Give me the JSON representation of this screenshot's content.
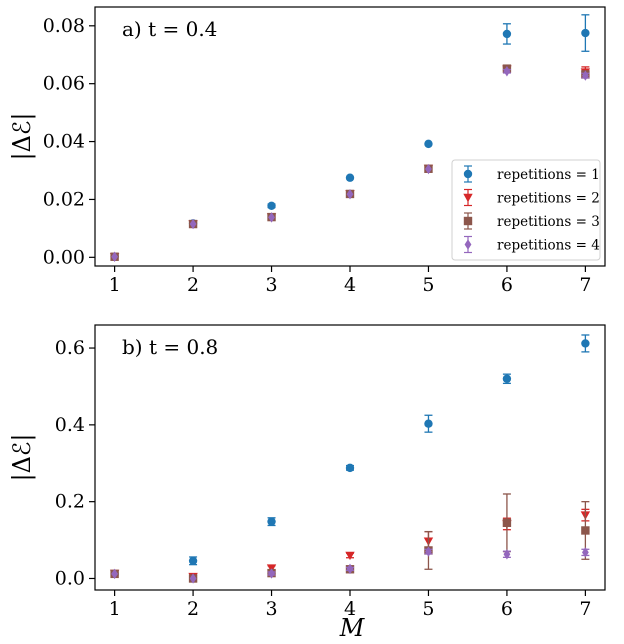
{
  "colors": {
    "rep1": "#1f77b4",
    "rep2": "#d62728",
    "rep3": "#8c564b",
    "rep4": "#9467bd"
  },
  "x_axis_label": "M",
  "y_axis_label": "|Δℰ|",
  "chart_data": [
    {
      "type": "scatter",
      "title": "a) t = 0.4",
      "xlabel": "",
      "ylabel": "|Δℰ|",
      "xlim": [
        0.75,
        7.25
      ],
      "ylim": [
        -0.003,
        0.0865
      ],
      "x_ticks": [
        1,
        2,
        3,
        4,
        5,
        6,
        7
      ],
      "x_tick_labels": [
        "1",
        "2",
        "3",
        "4",
        "5",
        "6",
        "7"
      ],
      "y_ticks": [
        0.0,
        0.02,
        0.04,
        0.06,
        0.08
      ],
      "y_tick_labels": [
        "0.00",
        "0.02",
        "0.04",
        "0.06",
        "0.08"
      ],
      "grid": false,
      "legend_position": "lower-right",
      "x": [
        1,
        2,
        3,
        4,
        5,
        6,
        7
      ],
      "series": [
        {
          "name": "repetitions = 1",
          "marker": "circle",
          "values": [
            0.0002,
            0.0117,
            0.0178,
            0.0275,
            0.0392,
            0.0772,
            0.0775
          ],
          "errors": [
            0.0004,
            0.0005,
            0.0006,
            0.0004,
            0.0003,
            0.0035,
            0.0063
          ]
        },
        {
          "name": "repetitions = 2",
          "marker": "triangle-down",
          "values": [
            0.0002,
            0.0115,
            0.0139,
            0.022,
            0.0307,
            0.065,
            0.064
          ],
          "errors": [
            0.0003,
            0.0005,
            0.0005,
            0.0004,
            0.0004,
            0.0006,
            0.0018
          ]
        },
        {
          "name": "repetitions = 3",
          "marker": "square",
          "values": [
            0.0002,
            0.0115,
            0.0139,
            0.0219,
            0.0306,
            0.0652,
            0.0632
          ],
          "errors": [
            0.0003,
            0.0005,
            0.0005,
            0.0004,
            0.0004,
            0.0006,
            0.0012
          ]
        },
        {
          "name": "repetitions = 4",
          "marker": "diamond",
          "values": [
            0.0002,
            0.0115,
            0.0138,
            0.0218,
            0.0305,
            0.0643,
            0.0628
          ],
          "errors": [
            0.0003,
            0.0005,
            0.0005,
            0.0004,
            0.0004,
            0.0006,
            0.0008
          ]
        }
      ]
    },
    {
      "type": "scatter",
      "title": "b) t = 0.8",
      "xlabel": "M",
      "ylabel": "|Δℰ|",
      "xlim": [
        0.75,
        7.25
      ],
      "ylim": [
        -0.03,
        0.66
      ],
      "x_ticks": [
        1,
        2,
        3,
        4,
        5,
        6,
        7
      ],
      "x_tick_labels": [
        "1",
        "2",
        "3",
        "4",
        "5",
        "6",
        "7"
      ],
      "y_ticks": [
        0.0,
        0.2,
        0.4,
        0.6
      ],
      "y_tick_labels": [
        "0.0",
        "0.2",
        "0.4",
        "0.6"
      ],
      "grid": false,
      "x": [
        1,
        2,
        3,
        4,
        5,
        6,
        7
      ],
      "series": [
        {
          "name": "repetitions = 1",
          "marker": "circle",
          "values": [
            0.012,
            0.046,
            0.148,
            0.288,
            0.403,
            0.52,
            0.612
          ],
          "errors": [
            0.004,
            0.01,
            0.01,
            0.006,
            0.022,
            0.012,
            0.022
          ]
        },
        {
          "name": "repetitions = 2",
          "marker": "triangle-down",
          "values": [
            0.013,
            0.005,
            0.027,
            0.06,
            0.097,
            0.142,
            0.165
          ],
          "errors": [
            0.003,
            0.004,
            0.006,
            0.006,
            0.025,
            0.015,
            0.015
          ]
        },
        {
          "name": "repetitions = 3",
          "marker": "square",
          "values": [
            0.012,
            0.0,
            0.014,
            0.024,
            0.073,
            0.145,
            0.125
          ],
          "errors": [
            0.002,
            0.002,
            0.004,
            0.004,
            0.049,
            0.075,
            0.075
          ]
        },
        {
          "name": "repetitions = 4",
          "marker": "diamond",
          "values": [
            0.012,
            0.0,
            0.013,
            0.025,
            0.07,
            0.063,
            0.068
          ],
          "errors": [
            0.002,
            0.002,
            0.004,
            0.004,
            0.006,
            0.008,
            0.008
          ]
        }
      ]
    }
  ]
}
